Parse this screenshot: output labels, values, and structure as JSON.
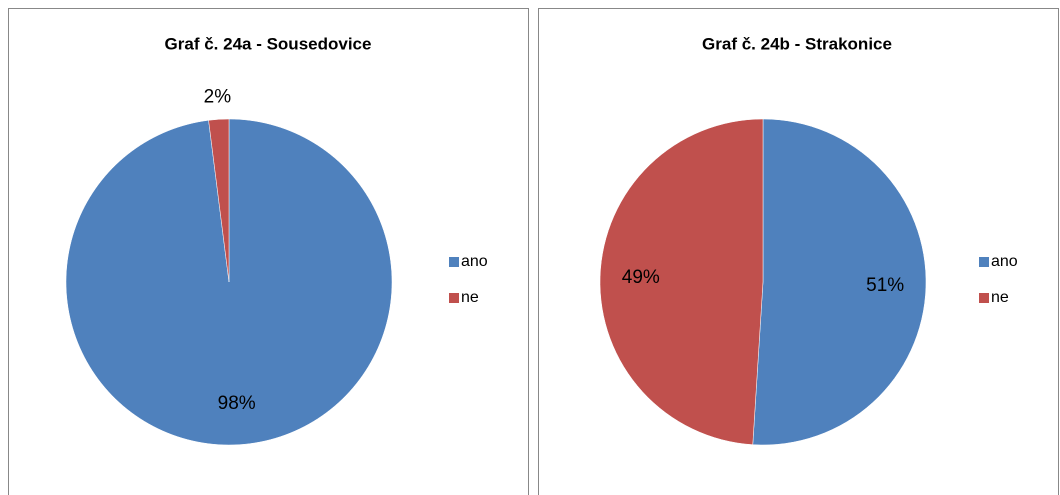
{
  "chart_data": [
    {
      "type": "pie",
      "title": "Graf č. 24a - Sousedovice",
      "categories": [
        "ano",
        "ne"
      ],
      "values": [
        98,
        2
      ],
      "value_labels": [
        "98%",
        "2%"
      ],
      "colors": [
        "#4f81bd",
        "#c0504d"
      ],
      "legend": "right"
    },
    {
      "type": "pie",
      "title": "Graf č. 24b - Strakonice",
      "categories": [
        "ano",
        "ne"
      ],
      "values": [
        51,
        49
      ],
      "value_labels": [
        "51%",
        "49%"
      ],
      "colors": [
        "#4f81bd",
        "#c0504d"
      ],
      "legend": "right"
    }
  ]
}
